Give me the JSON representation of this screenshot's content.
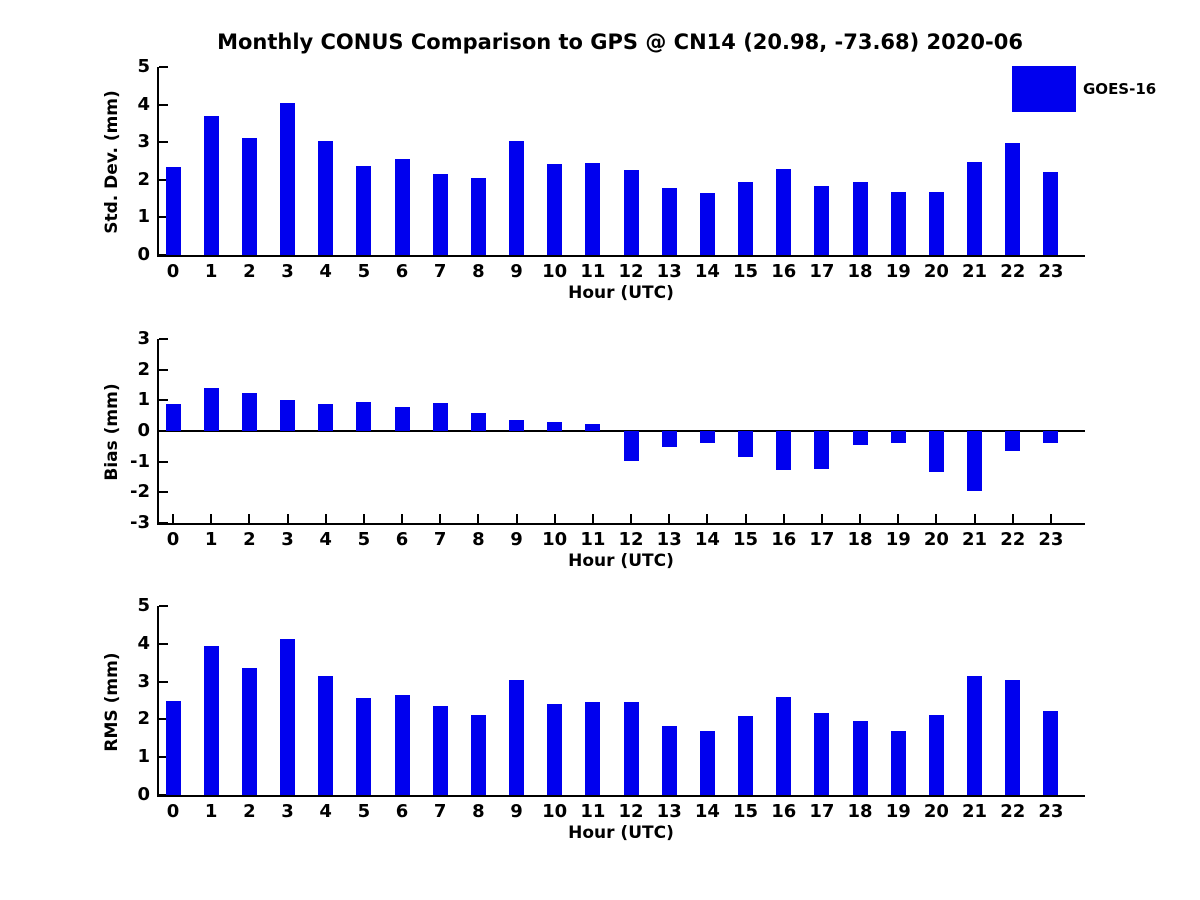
{
  "figure": {
    "title": "Monthly CONUS Comparison to GPS @ CN14 (20.98, -73.68) 2020-06",
    "background_color": "#ffffff",
    "text_color": "#000000",
    "bar_color": "#0000ee",
    "legend": {
      "label": "GOES-16",
      "swatch_color": "#0000ee",
      "position": "top-right"
    }
  },
  "chart_data": [
    {
      "type": "bar",
      "name": "std-dev-by-hour",
      "ylabel": "Std. Dev. (mm)",
      "xlabel": "Hour (UTC)",
      "legend_label": "GOES-16",
      "grid": false,
      "categories": [
        "0",
        "1",
        "2",
        "3",
        "4",
        "5",
        "6",
        "7",
        "8",
        "9",
        "10",
        "11",
        "12",
        "13",
        "14",
        "15",
        "16",
        "17",
        "18",
        "19",
        "20",
        "21",
        "22",
        "23"
      ],
      "values": [
        2.33,
        3.7,
        3.12,
        4.03,
        3.03,
        2.38,
        2.54,
        2.15,
        2.04,
        3.04,
        2.41,
        2.46,
        2.27,
        1.78,
        1.65,
        1.93,
        2.3,
        1.84,
        1.93,
        1.67,
        1.68,
        2.47,
        2.98,
        2.2
      ],
      "ylim": [
        0,
        5
      ],
      "yticks": [
        0,
        1,
        2,
        3,
        4,
        5
      ],
      "zero_line": false
    },
    {
      "type": "bar",
      "name": "bias-by-hour",
      "ylabel": "Bias (mm)",
      "xlabel": "Hour (UTC)",
      "legend_label": "GOES-16",
      "grid": false,
      "categories": [
        "0",
        "1",
        "2",
        "3",
        "4",
        "5",
        "6",
        "7",
        "8",
        "9",
        "10",
        "11",
        "12",
        "13",
        "14",
        "15",
        "16",
        "17",
        "18",
        "19",
        "20",
        "21",
        "22",
        "23"
      ],
      "values": [
        0.87,
        1.4,
        1.25,
        1.0,
        0.88,
        0.94,
        0.78,
        0.92,
        0.6,
        0.37,
        0.3,
        0.22,
        -0.97,
        -0.52,
        -0.4,
        -0.86,
        -1.26,
        -1.23,
        -0.46,
        -0.4,
        -1.34,
        -1.97,
        -0.66,
        -0.38
      ],
      "ylim": [
        -3,
        3
      ],
      "yticks": [
        3,
        2,
        1,
        0,
        -1,
        -2,
        -3
      ],
      "zero_line": true
    },
    {
      "type": "bar",
      "name": "rms-by-hour",
      "ylabel": "RMS (mm)",
      "xlabel": "Hour (UTC)",
      "legend_label": "GOES-16",
      "grid": false,
      "categories": [
        "0",
        "1",
        "2",
        "3",
        "4",
        "5",
        "6",
        "7",
        "8",
        "9",
        "10",
        "11",
        "12",
        "13",
        "14",
        "15",
        "16",
        "17",
        "18",
        "19",
        "20",
        "21",
        "22",
        "23"
      ],
      "values": [
        2.49,
        3.95,
        3.35,
        4.14,
        3.14,
        2.57,
        2.64,
        2.36,
        2.12,
        3.04,
        2.41,
        2.46,
        2.46,
        1.83,
        1.68,
        2.09,
        2.59,
        2.17,
        1.96,
        1.7,
        2.12,
        3.14,
        3.04,
        2.23
      ],
      "ylim": [
        0,
        5
      ],
      "yticks": [
        0,
        1,
        2,
        3,
        4,
        5
      ],
      "zero_line": false
    }
  ]
}
